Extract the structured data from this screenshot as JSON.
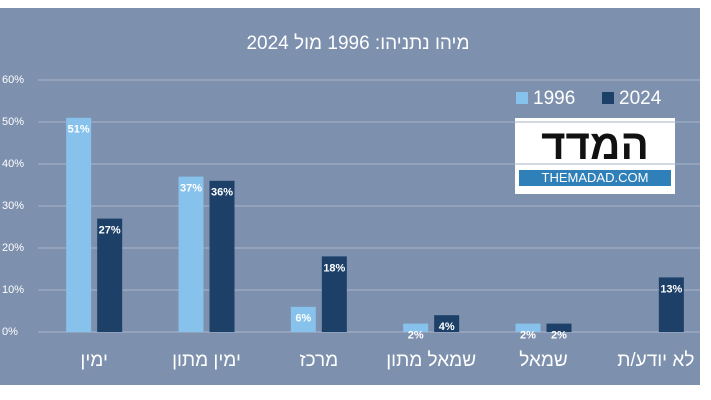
{
  "chart_data": {
    "type": "bar",
    "title": "מיהו נתניהו: 1996 מול 2024",
    "categories": [
      "ימין",
      "ימין מתון",
      "מרכז",
      "שמאל מתון",
      "שמאל",
      "לא יודע/ת"
    ],
    "series": [
      {
        "name": "1996",
        "color": "#86c2ec",
        "values": [
          51,
          37,
          6,
          2,
          2,
          null
        ],
        "value_labels": [
          "51%",
          "37%",
          "6%",
          "2%",
          "2%",
          null
        ]
      },
      {
        "name": "2024",
        "color": "#1c4068",
        "values": [
          27,
          36,
          18,
          4,
          2,
          13
        ],
        "value_labels": [
          "27%",
          "36%",
          "18%",
          "4%",
          "2%",
          "13%"
        ]
      }
    ],
    "ylim": [
      0,
      60
    ],
    "yticks": [
      {
        "value": 0,
        "label": "0%"
      },
      {
        "value": 10,
        "label": "10%"
      },
      {
        "value": 20,
        "label": "20%"
      },
      {
        "value": 30,
        "label": "30%"
      },
      {
        "value": 40,
        "label": "40%"
      },
      {
        "value": 50,
        "label": "50%"
      },
      {
        "value": 60,
        "label": "60%"
      }
    ],
    "grid": true,
    "legend": "top-right"
  },
  "logo": {
    "title": "המדד",
    "url": "THEMADAD.COM"
  }
}
